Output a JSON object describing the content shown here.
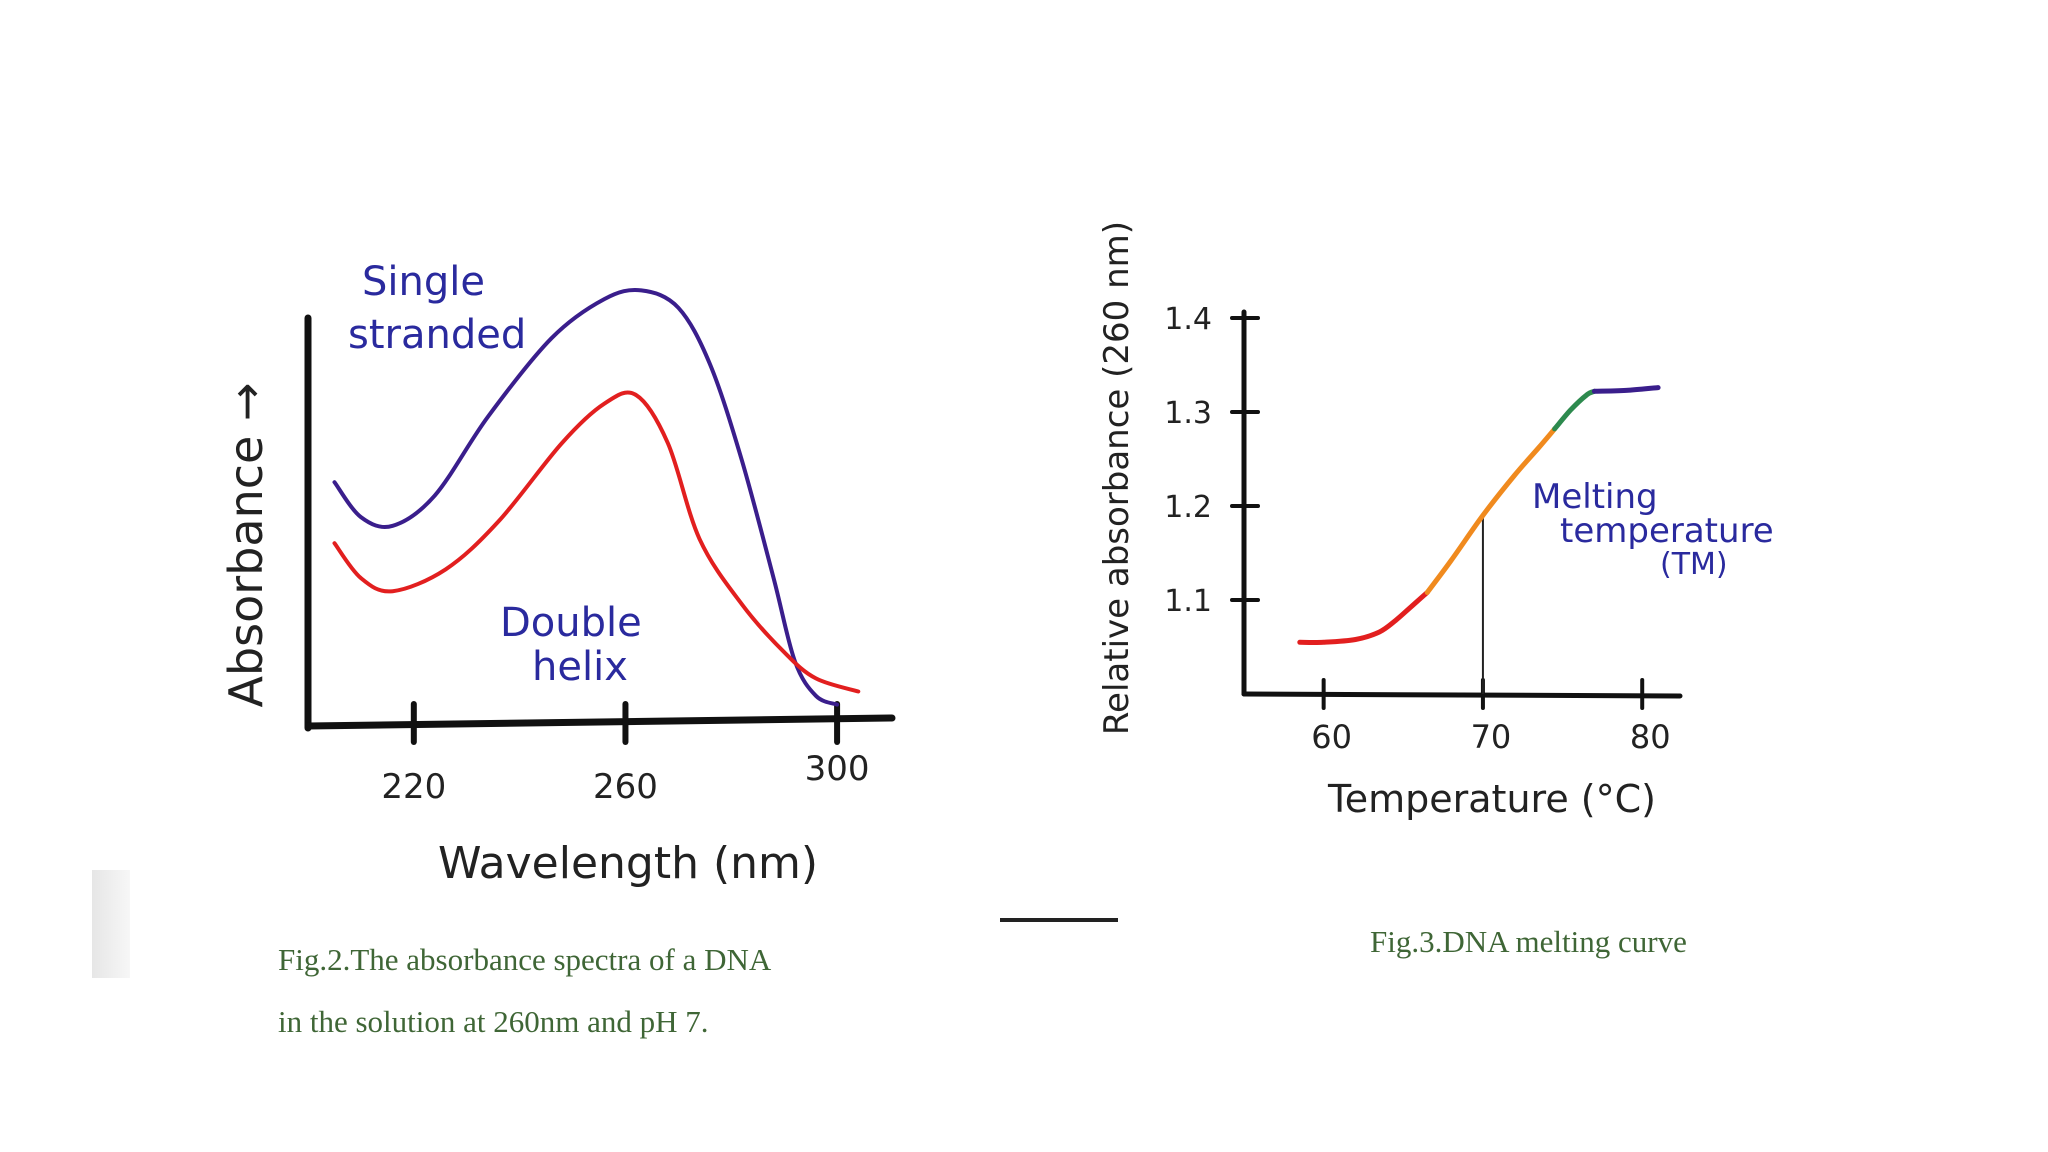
{
  "chart_data": [
    {
      "type": "line",
      "title": "",
      "xlabel": "Wavelength (nm)",
      "ylabel": "Absorbance →",
      "x_ticks": [
        220,
        260,
        300
      ],
      "x_tick_labels": [
        "220",
        "260",
        "300"
      ],
      "xlim": [
        200,
        310
      ],
      "ylim": [
        0,
        1
      ],
      "grid": false,
      "annotations": [
        "Double helix"
      ],
      "series": [
        {
          "name": "Single stranded",
          "color": "#3a1e8c",
          "x": [
            205,
            210,
            216,
            224,
            234,
            246,
            256,
            263,
            270,
            276,
            282,
            288,
            292,
            296,
            300
          ],
          "y": [
            0.55,
            0.47,
            0.45,
            0.52,
            0.7,
            0.88,
            0.97,
            0.99,
            0.95,
            0.82,
            0.6,
            0.33,
            0.14,
            0.06,
            0.04
          ]
        },
        {
          "name": "Double helix",
          "color": "#e21f1f",
          "x": [
            205,
            210,
            216,
            226,
            236,
            248,
            256,
            262,
            268,
            274,
            282,
            290,
            296,
            304
          ],
          "y": [
            0.41,
            0.33,
            0.3,
            0.35,
            0.46,
            0.64,
            0.73,
            0.75,
            0.64,
            0.42,
            0.27,
            0.16,
            0.1,
            0.07
          ]
        }
      ]
    },
    {
      "type": "line",
      "title": "",
      "xlabel": "Temperature (°C)",
      "ylabel": "Relative absorbance (260 nm)",
      "x_ticks": [
        60,
        70,
        80
      ],
      "x_tick_labels": [
        "60",
        "70",
        "80"
      ],
      "y_ticks": [
        1.1,
        1.2,
        1.3,
        1.4
      ],
      "y_tick_labels": [
        "1.1",
        "1.2",
        "1.3",
        "1.4"
      ],
      "xlim": [
        55,
        83
      ],
      "ylim": [
        1.0,
        1.4
      ],
      "grid": false,
      "annotations": [
        "Melting temperature (TM)"
      ],
      "melting_temperature": 70,
      "series": [
        {
          "segments": [
            {
              "color": "#e21f1f",
              "x": [
                58.5,
                60,
                62,
                63.5,
                64.5,
                65.5,
                66.5
              ],
              "y": [
                1.055,
                1.055,
                1.058,
                1.066,
                1.078,
                1.093,
                1.108
              ]
            },
            {
              "color": "#f08a1e",
              "x": [
                66.5,
                68,
                70,
                72,
                73.5,
                74.5
              ],
              "y": [
                1.108,
                1.142,
                1.19,
                1.233,
                1.262,
                1.282
              ]
            },
            {
              "color": "#2d8a4e",
              "x": [
                74.5,
                75.5,
                76.5,
                77
              ],
              "y": [
                1.282,
                1.302,
                1.318,
                1.322
              ]
            },
            {
              "color": "#3a1e8c",
              "x": [
                77,
                79,
                81
              ],
              "y": [
                1.322,
                1.323,
                1.326
              ]
            }
          ]
        }
      ]
    }
  ],
  "fig1": {
    "label_single": [
      "Single",
      "stranded"
    ],
    "label_double": [
      "Double",
      "helix"
    ],
    "caption": [
      "Fig.2.The absorbance spectra of a DNA",
      "in the solution at 260nm and pH 7."
    ]
  },
  "fig2": {
    "label_tm": [
      "Melting",
      "temperature",
      "(TM)"
    ],
    "caption": "Fig.3.DNA melting curve"
  }
}
